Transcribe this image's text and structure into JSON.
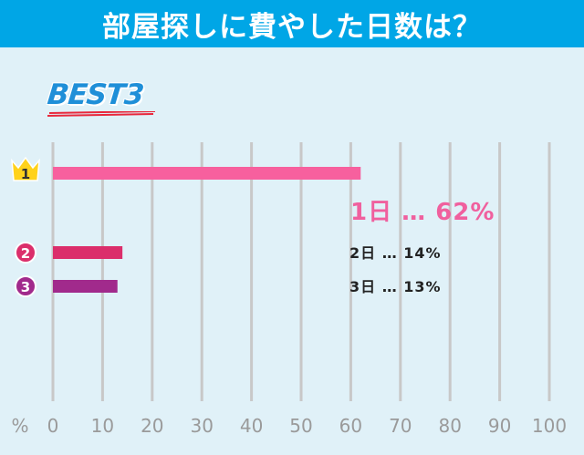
{
  "header": {
    "title": "部屋探しに費やした日数は？"
  },
  "badge": {
    "text": "BEST3"
  },
  "chart_data": {
    "type": "bar",
    "orientation": "horizontal",
    "categories": [
      "1日",
      "2日",
      "3日"
    ],
    "values": [
      62,
      14,
      13
    ],
    "labels": [
      "1日 … 62%",
      "2日 … 14%",
      "3日 … 13%"
    ],
    "ranks": [
      "1",
      "2",
      "3"
    ],
    "xlim": [
      0,
      100
    ],
    "x_ticks": [
      "0",
      "10",
      "20",
      "30",
      "40",
      "50",
      "60",
      "70",
      "80",
      "90",
      "100"
    ],
    "x_unit": "%",
    "grid": true,
    "colors": [
      "#f7609e",
      "#db2e6b",
      "#a12a8c"
    ]
  },
  "theme": {
    "header_bg": "#00a6e6",
    "plot_bg": "#e0f1f8",
    "grid_color": "#c8c8c8",
    "crown_color": "#ffd21a"
  }
}
